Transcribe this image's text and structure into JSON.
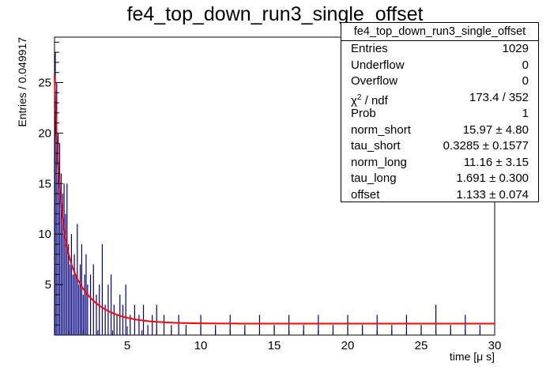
{
  "chart_data": {
    "type": "histogram",
    "title": "fe4_top_down_run3_single_offset",
    "xlabel": "time [μ s]",
    "ylabel": "Entries / 0.049917",
    "xlim": [
      0.05,
      30
    ],
    "ylim": [
      0,
      29.5
    ],
    "x_ticks": [
      5,
      10,
      15,
      20,
      25,
      30
    ],
    "y_ticks": [
      5,
      10,
      15,
      20,
      25
    ],
    "bin_width": 0.049917,
    "grid": false,
    "series": [
      {
        "kind": "histogram",
        "color": "#000080",
        "points": [
          [
            0.1,
            28
          ],
          [
            0.2,
            25
          ],
          [
            0.3,
            20
          ],
          [
            0.4,
            19
          ],
          [
            0.5,
            16
          ],
          [
            0.6,
            14
          ],
          [
            0.7,
            15
          ],
          [
            0.8,
            12
          ],
          [
            0.9,
            15
          ],
          [
            1.0,
            9
          ],
          [
            1.1,
            7
          ],
          [
            1.2,
            10
          ],
          [
            1.3,
            6
          ],
          [
            1.4,
            8
          ],
          [
            1.5,
            6
          ],
          [
            1.6,
            11
          ],
          [
            1.7,
            5
          ],
          [
            1.8,
            7
          ],
          [
            1.9,
            9
          ],
          [
            2.0,
            4
          ],
          [
            2.1,
            6
          ],
          [
            2.2,
            8
          ],
          [
            2.3,
            5
          ],
          [
            2.5,
            6
          ],
          [
            2.7,
            7
          ],
          [
            2.9,
            4
          ],
          [
            3.1,
            5
          ],
          [
            3.3,
            9
          ],
          [
            3.5,
            3
          ],
          [
            3.7,
            5
          ],
          [
            3.9,
            6
          ],
          [
            4.1,
            3
          ],
          [
            4.3,
            2
          ],
          [
            4.5,
            4
          ],
          [
            4.7,
            3
          ],
          [
            4.9,
            5
          ],
          [
            5.2,
            2
          ],
          [
            5.5,
            3
          ],
          [
            5.8,
            2
          ],
          [
            6.1,
            3
          ],
          [
            6.4,
            1
          ],
          [
            6.7,
            2
          ],
          [
            7.0,
            3
          ],
          [
            7.5,
            2
          ],
          [
            8.0,
            1
          ],
          [
            8.5,
            2
          ],
          [
            9.0,
            1
          ],
          [
            10.0,
            2
          ],
          [
            11.0,
            1
          ],
          [
            12.0,
            2
          ],
          [
            13.0,
            1
          ],
          [
            14.0,
            2
          ],
          [
            15.0,
            1
          ],
          [
            16.0,
            2
          ],
          [
            17.0,
            1
          ],
          [
            18.0,
            2
          ],
          [
            19.0,
            1
          ],
          [
            20.0,
            2
          ],
          [
            21.0,
            1
          ],
          [
            22.0,
            2
          ],
          [
            23.0,
            1
          ],
          [
            24.0,
            2
          ],
          [
            25.0,
            1
          ],
          [
            26.0,
            3
          ],
          [
            27.0,
            1
          ],
          [
            28.0,
            2
          ],
          [
            29.0,
            1
          ]
        ]
      },
      {
        "kind": "fit",
        "name": "fit",
        "color": "#ff0000",
        "function": "norm_short*exp(-t/tau_short) + norm_long*exp(-t/tau_long) + offset",
        "params": {
          "norm_short": 15.97,
          "tau_short": 0.3285,
          "norm_long": 11.16,
          "tau_long": 1.691,
          "offset": 1.133
        }
      }
    ]
  },
  "stats": {
    "title": "fe4_top_down_run3_single_offset",
    "placement": "top-right",
    "rows": [
      {
        "label": "Entries",
        "value": "1029"
      },
      {
        "label": "Underflow",
        "value": "0"
      },
      {
        "label": "Overflow",
        "value": "0"
      },
      {
        "label_main": "χ",
        "label_sup": "2",
        "label_rest": " / ndf",
        "value": "173.4 / 352"
      },
      {
        "label": "Prob",
        "value": "1"
      },
      {
        "label": "norm_short",
        "value": "15.97 ± 4.80"
      },
      {
        "label": "tau_short",
        "value": "0.3285 ± 0.1577"
      },
      {
        "label": "norm_long",
        "value": "11.16 ± 3.15"
      },
      {
        "label": "tau_long",
        "value": "1.691 ± 0.300"
      },
      {
        "label": "offset",
        "value": "1.133 ± 0.074"
      }
    ]
  }
}
